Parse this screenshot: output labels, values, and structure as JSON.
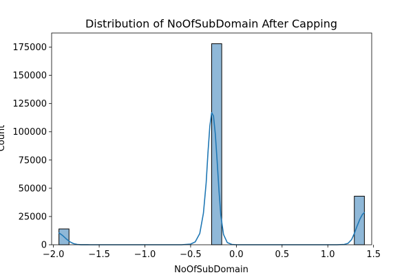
{
  "chart_data": {
    "type": "bar",
    "title": "Distribution of NoOfSubDomain After Capping",
    "xlabel": "NoOfSubDomain",
    "ylabel": "Count",
    "xlim": [
      -2.02,
      1.48
    ],
    "ylim": [
      0,
      187500
    ],
    "x_ticks": [
      -2.0,
      -1.5,
      -1.0,
      -0.5,
      0.0,
      0.5,
      1.0,
      1.5
    ],
    "x_tick_labels": [
      "−2.0",
      "−1.5",
      "−1.0",
      "−0.5",
      "0.0",
      "0.5",
      "1.0",
      "1.5"
    ],
    "y_ticks": [
      0,
      25000,
      50000,
      75000,
      100000,
      125000,
      150000,
      175000
    ],
    "y_tick_labels": [
      "0",
      "25000",
      "50000",
      "75000",
      "100000",
      "125000",
      "150000",
      "175000"
    ],
    "bars": [
      {
        "x0": -1.94,
        "x1": -1.83,
        "value": 14000
      },
      {
        "x0": -0.27,
        "x1": -0.16,
        "value": 178000
      },
      {
        "x0": 1.29,
        "x1": 1.4,
        "value": 43000
      }
    ],
    "bar_color": "#8fb8d8",
    "bar_edge_color": "#000000",
    "kde_color": "#1f77b4",
    "kde_points": [
      [
        -1.94,
        10500
      ],
      [
        -1.9,
        8200
      ],
      [
        -1.86,
        5200
      ],
      [
        -1.82,
        2600
      ],
      [
        -1.78,
        1000
      ],
      [
        -1.74,
        300
      ],
      [
        -1.7,
        50
      ],
      [
        -1.6,
        0
      ],
      [
        -0.6,
        0
      ],
      [
        -0.5,
        600
      ],
      [
        -0.45,
        2500
      ],
      [
        -0.4,
        10000
      ],
      [
        -0.36,
        28000
      ],
      [
        -0.33,
        55000
      ],
      [
        -0.31,
        82000
      ],
      [
        -0.29,
        105000
      ],
      [
        -0.27,
        117000
      ],
      [
        -0.25,
        114000
      ],
      [
        -0.23,
        98000
      ],
      [
        -0.21,
        74000
      ],
      [
        -0.19,
        48000
      ],
      [
        -0.17,
        26000
      ],
      [
        -0.14,
        9000
      ],
      [
        -0.1,
        2000
      ],
      [
        -0.05,
        300
      ],
      [
        0.0,
        0
      ],
      [
        1.1,
        0
      ],
      [
        1.18,
        300
      ],
      [
        1.22,
        1200
      ],
      [
        1.26,
        4500
      ],
      [
        1.29,
        10000
      ],
      [
        1.32,
        16500
      ],
      [
        1.35,
        22500
      ],
      [
        1.38,
        27000
      ],
      [
        1.4,
        28500
      ]
    ]
  }
}
